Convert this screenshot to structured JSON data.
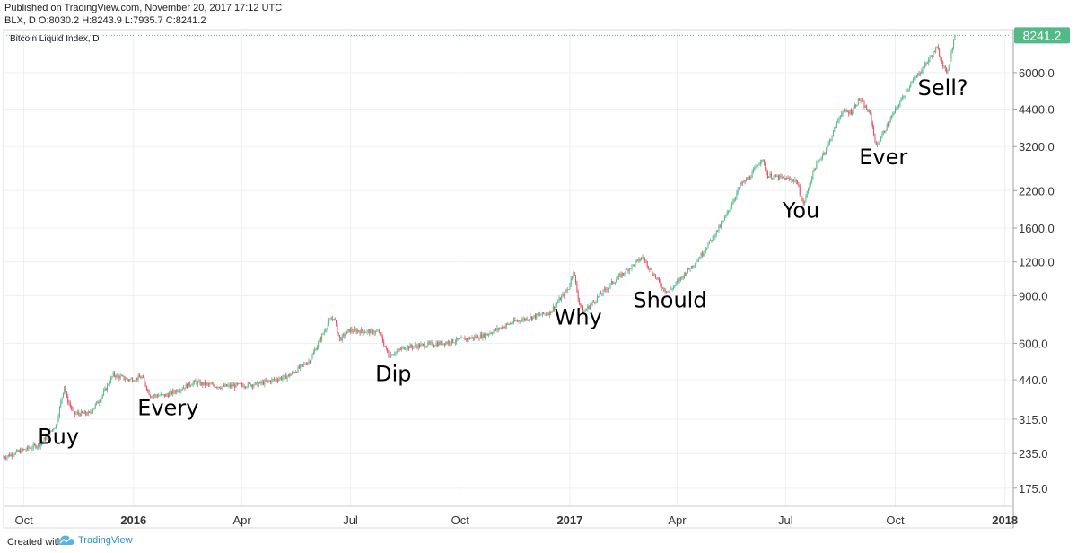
{
  "header": {
    "published": "Published on TradingView.com, November 20, 2017 17:12 UTC",
    "ohlc": "BLX, D  O:8030.2 H:8243.9 L:7935.7 C:8241.2"
  },
  "footer": {
    "created_with": "Created with",
    "brand": "TradingView"
  },
  "colors": {
    "up": "#53b987",
    "down": "#eb4d5c",
    "grid": "#eef0f3",
    "price_tag": "#53b987",
    "axis_text": "#333333"
  },
  "chart_data": {
    "type": "candlestick",
    "title": "Bitcoin Liquid Index, D",
    "scale": "log",
    "last_price": "8241.2",
    "last_value": 8241.2,
    "y_ticks": [
      {
        "label": "6000.0",
        "value": 6000
      },
      {
        "label": "4400.0",
        "value": 4400
      },
      {
        "label": "3200.0",
        "value": 3200
      },
      {
        "label": "2200.0",
        "value": 2200
      },
      {
        "label": "1600.0",
        "value": 1600
      },
      {
        "label": "1200.0",
        "value": 1200
      },
      {
        "label": "900.0",
        "value": 900
      },
      {
        "label": "600.0",
        "value": 600
      },
      {
        "label": "440.0",
        "value": 440
      },
      {
        "label": "315.0",
        "value": 315
      },
      {
        "label": "235.0",
        "value": 235
      },
      {
        "label": "175.0",
        "value": 175
      }
    ],
    "x_ticks": [
      {
        "label": "Oct",
        "date": "2015-10-01",
        "bold": false
      },
      {
        "label": "2016",
        "date": "2016-01-01",
        "bold": true
      },
      {
        "label": "Apr",
        "date": "2016-04-01",
        "bold": false
      },
      {
        "label": "Jul",
        "date": "2016-07-01",
        "bold": false
      },
      {
        "label": "Oct",
        "date": "2016-10-01",
        "bold": false
      },
      {
        "label": "2017",
        "date": "2017-01-01",
        "bold": true
      },
      {
        "label": "Apr",
        "date": "2017-04-01",
        "bold": false
      },
      {
        "label": "Jul",
        "date": "2017-07-01",
        "bold": false
      },
      {
        "label": "Oct",
        "date": "2017-10-01",
        "bold": false
      },
      {
        "label": "2018",
        "date": "2018-01-01",
        "bold": true
      }
    ],
    "date_range": [
      "2015-09-14",
      "2018-01-08"
    ],
    "price_path": [
      [
        "2015-09-14",
        228
      ],
      [
        "2015-10-15",
        255
      ],
      [
        "2015-10-28",
        300
      ],
      [
        "2015-11-04",
        420
      ],
      [
        "2015-11-06",
        375
      ],
      [
        "2015-11-12",
        330
      ],
      [
        "2015-11-25",
        330
      ],
      [
        "2015-12-05",
        380
      ],
      [
        "2015-12-15",
        460
      ],
      [
        "2015-12-28",
        440
      ],
      [
        "2016-01-08",
        450
      ],
      [
        "2016-01-15",
        385
      ],
      [
        "2016-01-28",
        385
      ],
      [
        "2016-02-20",
        430
      ],
      [
        "2016-03-15",
        415
      ],
      [
        "2016-04-15",
        425
      ],
      [
        "2016-05-10",
        455
      ],
      [
        "2016-05-28",
        520
      ],
      [
        "2016-06-12",
        710
      ],
      [
        "2016-06-17",
        750
      ],
      [
        "2016-06-22",
        620
      ],
      [
        "2016-06-30",
        670
      ],
      [
        "2016-07-25",
        660
      ],
      [
        "2016-08-02",
        540
      ],
      [
        "2016-08-15",
        580
      ],
      [
        "2016-09-20",
        605
      ],
      [
        "2016-10-20",
        640
      ],
      [
        "2016-11-15",
        720
      ],
      [
        "2016-12-15",
        780
      ],
      [
        "2016-12-31",
        960
      ],
      [
        "2017-01-04",
        1120
      ],
      [
        "2017-01-08",
        880
      ],
      [
        "2017-01-12",
        780
      ],
      [
        "2017-02-05",
        1000
      ],
      [
        "2017-03-03",
        1250
      ],
      [
        "2017-03-10",
        1120
      ],
      [
        "2017-03-20",
        960
      ],
      [
        "2017-03-25",
        930
      ],
      [
        "2017-04-20",
        1250
      ],
      [
        "2017-05-10",
        1700
      ],
      [
        "2017-05-24",
        2300
      ],
      [
        "2017-06-02",
        2500
      ],
      [
        "2017-06-11",
        2900
      ],
      [
        "2017-06-16",
        2500
      ],
      [
        "2017-07-10",
        2400
      ],
      [
        "2017-07-16",
        1950
      ],
      [
        "2017-07-25",
        2650
      ],
      [
        "2017-08-05",
        3200
      ],
      [
        "2017-08-17",
        4300
      ],
      [
        "2017-08-25",
        4300
      ],
      [
        "2017-09-01",
        4800
      ],
      [
        "2017-09-10",
        4200
      ],
      [
        "2017-09-15",
        3200
      ],
      [
        "2017-09-29",
        4200
      ],
      [
        "2017-10-12",
        5300
      ],
      [
        "2017-10-20",
        5900
      ],
      [
        "2017-11-05",
        7400
      ],
      [
        "2017-11-11",
        6300
      ],
      [
        "2017-11-13",
        5900
      ],
      [
        "2017-11-20",
        8241
      ]
    ],
    "annotations": [
      {
        "text": "Buy",
        "date": "2015-10-30",
        "value": 255
      },
      {
        "text": "Every",
        "date": "2016-01-30",
        "value": 325
      },
      {
        "text": "Dip",
        "date": "2016-08-06",
        "value": 435
      },
      {
        "text": "Why",
        "date": "2017-01-08",
        "value": 705
      },
      {
        "text": "Should",
        "date": "2017-03-26",
        "value": 815
      },
      {
        "text": "You",
        "date": "2017-07-14",
        "value": 1750
      },
      {
        "text": "Ever",
        "date": "2017-09-21",
        "value": 2750
      },
      {
        "text": "Sell?",
        "date": "2017-11-10",
        "value": 4960
      }
    ]
  }
}
